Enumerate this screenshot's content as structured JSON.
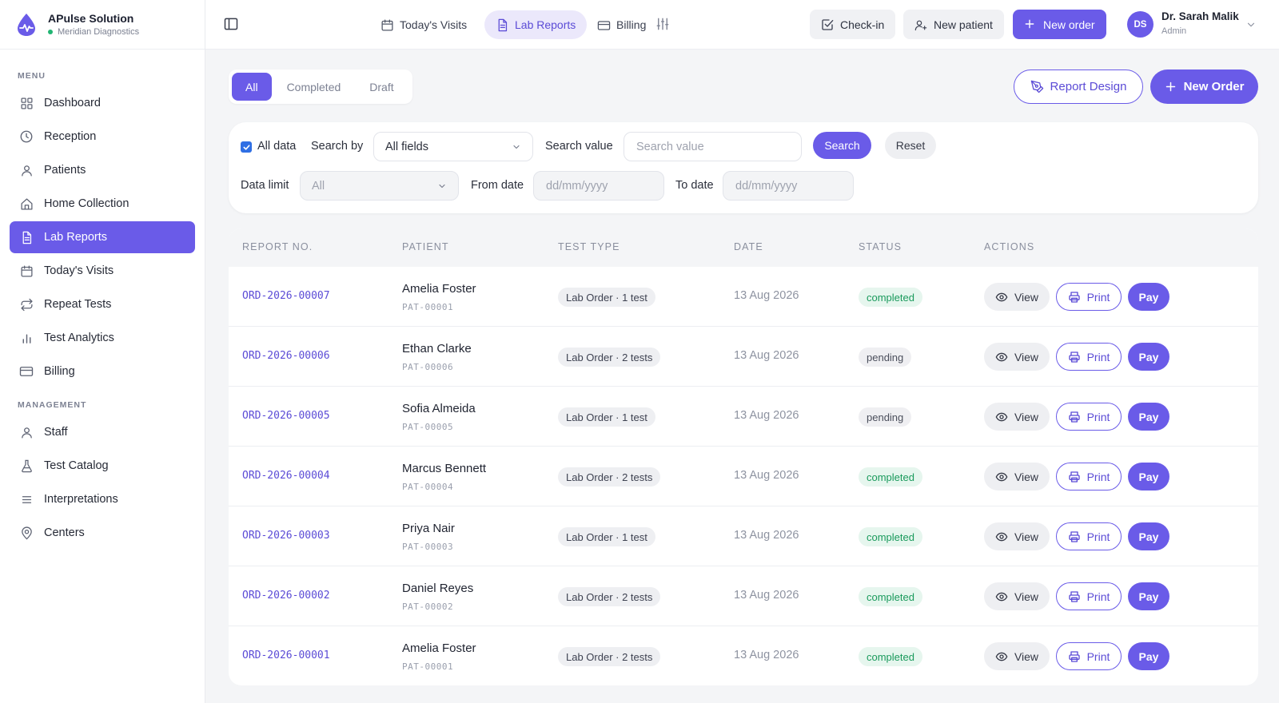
{
  "brand": {
    "name": "APulse Solution",
    "subtitle": "Meridian Diagnostics",
    "accent": "#6a5be8",
    "status_color": "#22b573"
  },
  "sidebar": {
    "menu_heading": "MENU",
    "menu_items": [
      {
        "label": "Dashboard",
        "icon": "grid-icon"
      },
      {
        "label": "Reception",
        "icon": "clock-icon"
      },
      {
        "label": "Patients",
        "icon": "user-icon"
      },
      {
        "label": "Home Collection",
        "icon": "home-icon"
      },
      {
        "label": "Lab Reports",
        "icon": "document-icon",
        "active": true
      },
      {
        "label": "Today's Visits",
        "icon": "calendar-icon"
      },
      {
        "label": "Repeat Tests",
        "icon": "repeat-icon"
      },
      {
        "label": "Test Analytics",
        "icon": "bar-chart-icon"
      },
      {
        "label": "Billing",
        "icon": "credit-card-icon"
      }
    ],
    "management_heading": "MANAGEMENT",
    "management_items": [
      {
        "label": "Staff",
        "icon": "user-icon"
      },
      {
        "label": "Test Catalog",
        "icon": "flask-icon"
      },
      {
        "label": "Interpretations",
        "icon": "list-icon"
      },
      {
        "label": "Centers",
        "icon": "map-pin-icon"
      }
    ]
  },
  "topbar": {
    "nav": [
      {
        "label": "Today's Visits",
        "icon": "calendar-icon"
      },
      {
        "label": "Lab Reports",
        "icon": "document-icon",
        "active": true
      },
      {
        "label": "Billing",
        "icon": "credit-card-icon"
      }
    ],
    "checkin_label": "Check-in",
    "new_patient_label": "New patient",
    "new_order_label": "New order",
    "user": {
      "initials": "DS",
      "name": "Dr. Sarah Malik",
      "role": "Admin"
    }
  },
  "filters": {
    "tabs": [
      "All",
      "Completed",
      "Draft"
    ],
    "active_tab": "All",
    "report_design_label": "Report Design",
    "new_order_label": "New Order",
    "all_data_label": "All data",
    "all_data_checked": true,
    "search_by_label": "Search by",
    "search_by_value": "All fields",
    "search_value_label": "Search value",
    "search_value_placeholder": "Search value",
    "search_button": "Search",
    "reset_button": "Reset",
    "data_limit_label": "Data limit",
    "data_limit_value": "All",
    "from_date_label": "From date",
    "from_date_placeholder": "dd/mm/yyyy",
    "to_date_label": "To date",
    "to_date_placeholder": "dd/mm/yyyy"
  },
  "table": {
    "columns": [
      "REPORT NO.",
      "PATIENT",
      "TEST TYPE",
      "DATE",
      "STATUS",
      "ACTIONS"
    ],
    "actions": {
      "view": "View",
      "print": "Print",
      "pay": "Pay"
    },
    "rows": [
      {
        "report_no": "ORD-2026-00007",
        "patient_name": "Amelia Foster",
        "patient_id": "PAT-00001",
        "test_type": "Lab Order · 1 test",
        "date": "13 Aug 2026",
        "status": "completed"
      },
      {
        "report_no": "ORD-2026-00006",
        "patient_name": "Ethan Clarke",
        "patient_id": "PAT-00006",
        "test_type": "Lab Order · 2 tests",
        "date": "13 Aug 2026",
        "status": "pending"
      },
      {
        "report_no": "ORD-2026-00005",
        "patient_name": "Sofia Almeida",
        "patient_id": "PAT-00005",
        "test_type": "Lab Order · 1 test",
        "date": "13 Aug 2026",
        "status": "pending"
      },
      {
        "report_no": "ORD-2026-00004",
        "patient_name": "Marcus Bennett",
        "patient_id": "PAT-00004",
        "test_type": "Lab Order · 2 tests",
        "date": "13 Aug 2026",
        "status": "completed"
      },
      {
        "report_no": "ORD-2026-00003",
        "patient_name": "Priya Nair",
        "patient_id": "PAT-00003",
        "test_type": "Lab Order · 1 test",
        "date": "13 Aug 2026",
        "status": "completed"
      },
      {
        "report_no": "ORD-2026-00002",
        "patient_name": "Daniel Reyes",
        "patient_id": "PAT-00002",
        "test_type": "Lab Order · 2 tests",
        "date": "13 Aug 2026",
        "status": "completed"
      },
      {
        "report_no": "ORD-2026-00001",
        "patient_name": "Amelia Foster",
        "patient_id": "PAT-00001",
        "test_type": "Lab Order · 2 tests",
        "date": "13 Aug 2026",
        "status": "completed"
      }
    ]
  }
}
